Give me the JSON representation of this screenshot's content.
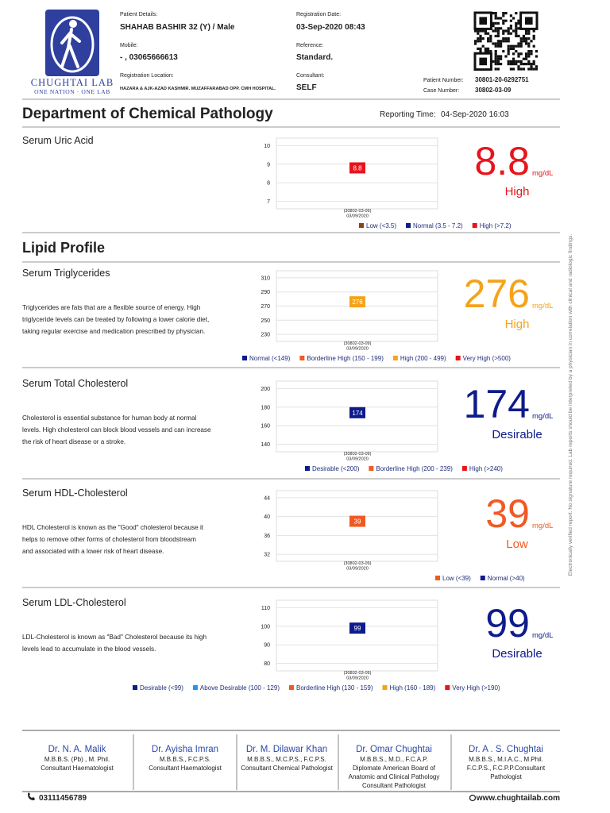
{
  "header": {
    "logo": {
      "name": "CHUGHTAI LAB",
      "tagline": "ONE NATION · ONE LAB"
    },
    "fields": [
      {
        "label": "Patient Details:",
        "value": "SHAHAB BASHIR   32 (Y) / Male"
      },
      {
        "label": "Mobile:",
        "value": "- , 03065666613"
      },
      {
        "label": "Registration Location:",
        "value": "HAZARA & AJK-AZAD KASHMIR. MUZAFFARABAD OPP. CMH HOSPITAL."
      },
      {
        "label": "Registration Date:",
        "value": "03-Sep-2020 08:43"
      },
      {
        "label": "Reference:",
        "value": "Standard."
      },
      {
        "label": "Consultant:",
        "value": "SELF"
      }
    ],
    "numbers": [
      {
        "label": "Patient Number:",
        "value": "30801-20-6292751"
      },
      {
        "label": "Case Number:",
        "value": "30802-03-09"
      }
    ]
  },
  "department": "Department of Chemical Pathology",
  "reporting_time": {
    "label": "Reporting Time:",
    "value": "04-Sep-2020 16:03"
  },
  "lipid_title": "Lipid Profile",
  "tests": [
    {
      "name": "Serum Uric Acid",
      "description": [],
      "ylim": [
        6.6,
        10.4
      ],
      "yticks": [
        7,
        8,
        9,
        10
      ],
      "value": 8.8,
      "color": "#e8141c",
      "x_label": [
        "(30802-03-09)",
        "03/09/2020"
      ],
      "unit": "mg/dL",
      "status": "High",
      "legend": [
        {
          "label": "Low (<3.5)",
          "color": "#8b4513"
        },
        {
          "label": "Normal (3.5 - 7.2)",
          "color": "#0d1b8c"
        },
        {
          "label": "High (>7.2)",
          "color": "#e8141c"
        }
      ]
    },
    {
      "name": "Serum Triglycerides",
      "description": [
        "Triglycerides are fats that are a flexible source of energy. High",
        "triglyceride levels can be treated by following a lower calorie diet,",
        "taking regular exercise and medication prescribed by physician."
      ],
      "ylim": [
        220,
        320
      ],
      "yticks": [
        230,
        250,
        270,
        290,
        310
      ],
      "value": 276,
      "color": "#f5a31a",
      "x_label": [
        "(30802-03-09)",
        "03/09/2020"
      ],
      "unit": "mg/dL",
      "status": "High",
      "legend": [
        {
          "label": "Normal (<149)",
          "color": "#0d1b8c"
        },
        {
          "label": "Borderline High (150 - 199)",
          "color": "#f05a22"
        },
        {
          "label": "High (200 - 499)",
          "color": "#f5a31a"
        },
        {
          "label": "Very High (>500)",
          "color": "#e8141c"
        }
      ]
    },
    {
      "name": "Serum Total Cholesterol",
      "description": [
        "Cholesterol is essential substance for human body at normal",
        "levels. High cholesterol can block blood vessels and can increase",
        "the risk of heart disease or a stroke."
      ],
      "ylim": [
        132,
        208
      ],
      "yticks": [
        140,
        160,
        180,
        200
      ],
      "value": 174,
      "color": "#0d1b8c",
      "x_label": [
        "(30802-03-09)",
        "03/09/2020"
      ],
      "unit": "mg/dL",
      "status": "Desirable",
      "legend": [
        {
          "label": "Desirable (<200)",
          "color": "#0d1b8c"
        },
        {
          "label": "Borderline High (200 - 239)",
          "color": "#f05a22"
        },
        {
          "label": "High (>240)",
          "color": "#e8141c"
        }
      ]
    },
    {
      "name": "Serum HDL-Cholesterol",
      "description": [
        "HDL Cholesterol is known as the \"Good\" cholesterol because it",
        "helps to remove other forms of cholesterol from bloodstream",
        "and associated with a lower risk of heart disease."
      ],
      "ylim": [
        30.5,
        45.5
      ],
      "yticks": [
        32,
        36,
        40,
        44
      ],
      "value": 39,
      "color": "#f05a22",
      "x_label": [
        "(30802-03-09)",
        "03/09/2020"
      ],
      "unit": "mg/dL",
      "status": "Low",
      "legend": [
        {
          "label": "Low (<39)",
          "color": "#f05a22"
        },
        {
          "label": "Normal (>40)",
          "color": "#0d1b8c"
        }
      ]
    },
    {
      "name": "Serum LDL-Cholesterol",
      "description": [
        "LDL-Cholesterol is known as \"Bad\" Cholesterol because its high",
        "levels lead  to accumulate in the blood vessels."
      ],
      "ylim": [
        76,
        114
      ],
      "yticks": [
        80,
        90,
        100,
        110
      ],
      "value": 99,
      "color": "#0d1b8c",
      "x_label": [
        "(30802-03-09)",
        "03/09/2020"
      ],
      "unit": "mg/dL",
      "status": "Desirable",
      "legend": [
        {
          "label": "Desirable (<99)",
          "color": "#0d1b8c"
        },
        {
          "label": "Above Desirable (100 - 129)",
          "color": "#2196f3"
        },
        {
          "label": "Borderline High (130 - 159)",
          "color": "#f05a22"
        },
        {
          "label": "High (160 - 189)",
          "color": "#f5a31a"
        },
        {
          "label": "Very High (>190)",
          "color": "#e8141c"
        }
      ]
    }
  ],
  "side_note": "Electronically verified report. No signature required. Lab reports should be interpreted by a physician in correlation with clinical and radiologic findings.",
  "doctors": [
    {
      "name": "Dr. N. A. Malik",
      "lines": [
        "M.B.B.S. (Pb) , M. Phil.",
        "Consultant Haematologist"
      ]
    },
    {
      "name": "Dr. Ayisha Imran",
      "lines": [
        "M.B.B.S., F.C.P.S.",
        "Consultant Haematologist"
      ]
    },
    {
      "name": "Dr. M. Dilawar Khan",
      "lines": [
        "M.B.B.S., M.C.P.S., F.C.P.S.",
        "Consultant Chemical Pathologist"
      ]
    },
    {
      "name": "Dr. Omar Chughtai",
      "lines": [
        "M.B.B.S., M.D., F.C.A.P.",
        "Diplomate American Board of",
        "Anatomic and Clinical Pathology",
        "Consultant Pathologist"
      ]
    },
    {
      "name": "Dr. A . S. Chughtai",
      "lines": [
        "M.B.B.S., M.I.A.C., M.Phil.",
        "F.C.P.S., F.C.P.P.Consultant",
        "Pathologist"
      ]
    }
  ],
  "footer": {
    "phone": "03111456789",
    "website": "www.chughtailab.com"
  }
}
